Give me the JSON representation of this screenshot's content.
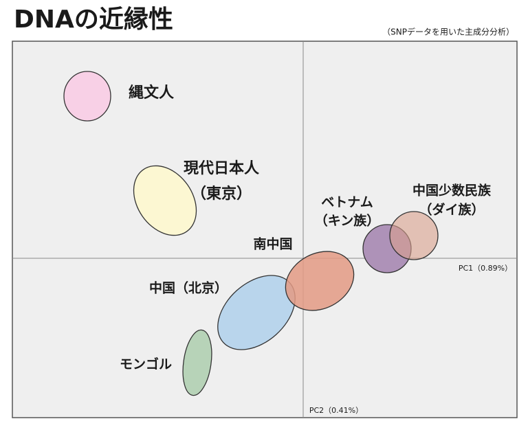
{
  "header": {
    "title": "DNAの近縁性",
    "subtitle": "（SNPデータを用いた主成分分析）"
  },
  "axes": {
    "pc1": "PC1（0.89%）",
    "pc2": "PC2（0.41%）"
  },
  "groups": [
    {
      "lines": [
        "縄文人"
      ]
    },
    {
      "lines": [
        "現代日本人",
        "（東京）"
      ]
    },
    {
      "lines": [
        "南中国"
      ]
    },
    {
      "lines": [
        "中国（北京）"
      ]
    },
    {
      "lines": [
        "モンゴル"
      ]
    },
    {
      "lines": [
        "ベトナム",
        "（キン族）"
      ]
    },
    {
      "lines": [
        "中国少数民族",
        "（ダイ族）"
      ]
    }
  ]
}
